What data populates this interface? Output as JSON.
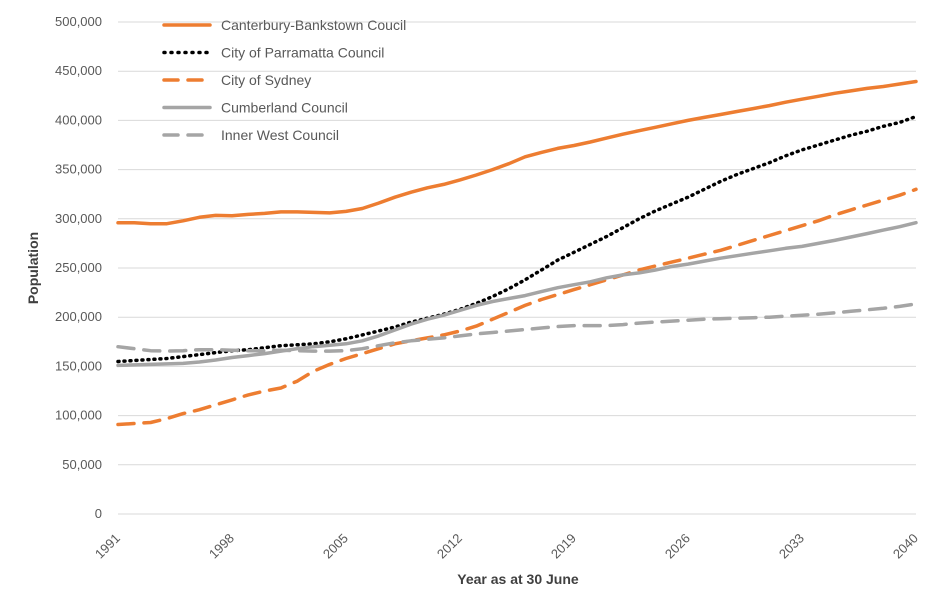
{
  "chart_data": {
    "type": "line",
    "xlabel": "Year as at 30 June",
    "ylabel": "Population",
    "ylim": [
      0,
      500000
    ],
    "yticks": [
      0,
      50000,
      100000,
      150000,
      200000,
      250000,
      300000,
      350000,
      400000,
      450000,
      500000
    ],
    "ytick_labels": [
      "0",
      "50,000",
      "100,000",
      "150,000",
      "200,000",
      "250,000",
      "300,000",
      "350,000",
      "400,000",
      "450,000",
      "500,000"
    ],
    "xlim": [
      1991,
      2040
    ],
    "xticks": [
      1991,
      1998,
      2005,
      2012,
      2019,
      2026,
      2033,
      2040
    ],
    "xtick_labels": [
      "1991",
      "1998",
      "2005",
      "2012",
      "2019",
      "2026",
      "2033",
      "2040"
    ],
    "grid": "horizontal",
    "legend_position": "top-left",
    "series": [
      {
        "name": "Canterbury-Bankstown Coucil",
        "color": "#ED7D31",
        "style": "solid",
        "x": [
          1991,
          1992,
          1993,
          1994,
          1995,
          1996,
          1997,
          1998,
          1999,
          2000,
          2001,
          2002,
          2003,
          2004,
          2005,
          2006,
          2007,
          2008,
          2009,
          2010,
          2011,
          2012,
          2013,
          2014,
          2015,
          2016,
          2017,
          2018,
          2019,
          2020,
          2021,
          2022,
          2023,
          2024,
          2025,
          2026,
          2027,
          2028,
          2029,
          2030,
          2031,
          2032,
          2033,
          2034,
          2035,
          2036,
          2037,
          2038,
          2039,
          2040
        ],
        "values": [
          296000,
          296000,
          295000,
          295000,
          298000,
          301500,
          303500,
          303000,
          304500,
          305500,
          307000,
          307000,
          306500,
          306000,
          307500,
          310500,
          316000,
          322000,
          327000,
          331500,
          335000,
          339500,
          344500,
          350000,
          356000,
          363000,
          367500,
          371500,
          374500,
          378000,
          382000,
          386000,
          389500,
          393000,
          396500,
          400000,
          403000,
          406000,
          409000,
          412000,
          415000,
          418500,
          421500,
          424500,
          427500,
          430000,
          432500,
          434500,
          437000,
          439500
        ]
      },
      {
        "name": "City of Parramatta Council",
        "color": "#000000",
        "style": "dotted",
        "x": [
          1991,
          1992,
          1993,
          1994,
          1995,
          1996,
          1997,
          1998,
          1999,
          2000,
          2001,
          2002,
          2003,
          2004,
          2005,
          2006,
          2007,
          2008,
          2009,
          2010,
          2011,
          2012,
          2013,
          2014,
          2015,
          2016,
          2017,
          2018,
          2019,
          2020,
          2021,
          2022,
          2023,
          2024,
          2025,
          2026,
          2027,
          2028,
          2029,
          2030,
          2031,
          2032,
          2033,
          2034,
          2035,
          2036,
          2037,
          2038,
          2039,
          2040
        ],
        "values": [
          155000,
          156000,
          157000,
          158000,
          160000,
          162000,
          164000,
          166000,
          167000,
          169000,
          171000,
          172000,
          173000,
          175000,
          178000,
          182000,
          186000,
          190000,
          195000,
          199000,
          203000,
          208000,
          214000,
          221000,
          229000,
          238000,
          248000,
          258000,
          266000,
          274000,
          282000,
          291000,
          300000,
          308000,
          315000,
          322000,
          330000,
          338000,
          345000,
          351000,
          357000,
          364000,
          370000,
          375000,
          380000,
          385000,
          389000,
          394000,
          398000,
          404000
        ]
      },
      {
        "name": "City of Sydney",
        "color": "#ED7D31",
        "style": "dashed",
        "x": [
          1991,
          1992,
          1993,
          1994,
          1995,
          1996,
          1997,
          1998,
          1999,
          2000,
          2001,
          2002,
          2003,
          2004,
          2005,
          2006,
          2007,
          2008,
          2009,
          2010,
          2011,
          2012,
          2013,
          2014,
          2015,
          2016,
          2017,
          2018,
          2019,
          2020,
          2021,
          2022,
          2023,
          2024,
          2025,
          2026,
          2027,
          2028,
          2029,
          2030,
          2031,
          2032,
          2033,
          2034,
          2035,
          2036,
          2037,
          2038,
          2039,
          2040
        ],
        "values": [
          91000,
          92000,
          93000,
          97000,
          102000,
          106000,
          111000,
          116000,
          121000,
          125000,
          128000,
          135000,
          145000,
          152000,
          158000,
          163000,
          168000,
          173000,
          176000,
          179000,
          182000,
          186000,
          191000,
          198000,
          205000,
          212000,
          218000,
          223000,
          228000,
          233000,
          238000,
          243000,
          248000,
          252000,
          256000,
          260000,
          264000,
          268000,
          273000,
          278000,
          283000,
          288000,
          293000,
          298000,
          304000,
          309000,
          314000,
          319000,
          324000,
          330000
        ]
      },
      {
        "name": "Cumberland Council",
        "color": "#A5A5A5",
        "style": "solid",
        "x": [
          1991,
          1992,
          1993,
          1994,
          1995,
          1996,
          1997,
          1998,
          1999,
          2000,
          2001,
          2002,
          2003,
          2004,
          2005,
          2006,
          2007,
          2008,
          2009,
          2010,
          2011,
          2012,
          2013,
          2014,
          2015,
          2016,
          2017,
          2018,
          2019,
          2020,
          2021,
          2022,
          2023,
          2024,
          2025,
          2026,
          2027,
          2028,
          2029,
          2030,
          2031,
          2032,
          2033,
          2034,
          2035,
          2036,
          2037,
          2038,
          2039,
          2040
        ],
        "values": [
          151000,
          151500,
          152000,
          152500,
          153000,
          154500,
          156500,
          159000,
          161000,
          163000,
          165500,
          168000,
          170000,
          171500,
          173000,
          176000,
          181000,
          187000,
          193000,
          198000,
          202000,
          207000,
          212000,
          216000,
          219000,
          222000,
          226000,
          230000,
          233000,
          236000,
          240000,
          243000,
          245000,
          248000,
          251500,
          254000,
          257000,
          260000,
          262500,
          265000,
          267500,
          270000,
          272000,
          275000,
          278000,
          281500,
          285000,
          288500,
          292000,
          296000
        ]
      },
      {
        "name": "Inner West Council",
        "color": "#A5A5A5",
        "style": "dashed",
        "x": [
          1991,
          1992,
          1993,
          1994,
          1995,
          1996,
          1997,
          1998,
          1999,
          2000,
          2001,
          2002,
          2003,
          2004,
          2005,
          2006,
          2007,
          2008,
          2009,
          2010,
          2011,
          2012,
          2013,
          2014,
          2015,
          2016,
          2017,
          2018,
          2019,
          2020,
          2021,
          2022,
          2023,
          2024,
          2025,
          2026,
          2027,
          2028,
          2029,
          2030,
          2031,
          2032,
          2033,
          2034,
          2035,
          2036,
          2037,
          2038,
          2039,
          2040
        ],
        "values": [
          170000,
          168000,
          166000,
          165500,
          166000,
          167000,
          167000,
          166500,
          166000,
          166000,
          166500,
          166000,
          165500,
          165500,
          166000,
          168000,
          171000,
          174000,
          176000,
          177500,
          179000,
          181000,
          183000,
          184500,
          186000,
          187500,
          189000,
          190500,
          191500,
          191500,
          191500,
          192500,
          194000,
          195000,
          196000,
          197000,
          198000,
          198500,
          199000,
          199500,
          200000,
          201000,
          202000,
          203000,
          204500,
          206000,
          207500,
          209000,
          211000,
          213500
        ]
      }
    ]
  }
}
